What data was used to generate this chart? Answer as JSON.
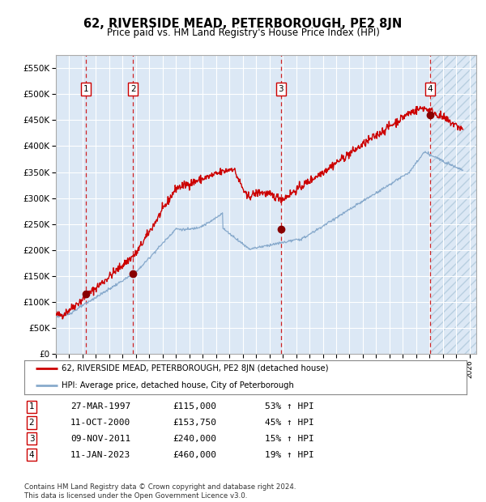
{
  "title": "62, RIVERSIDE MEAD, PETERBOROUGH, PE2 8JN",
  "subtitle": "Price paid vs. HM Land Registry's House Price Index (HPI)",
  "ylim": [
    0,
    575000
  ],
  "yticks": [
    0,
    50000,
    100000,
    150000,
    200000,
    250000,
    300000,
    350000,
    400000,
    450000,
    500000,
    550000
  ],
  "ytick_labels": [
    "£0",
    "£50K",
    "£100K",
    "£150K",
    "£200K",
    "£250K",
    "£300K",
    "£350K",
    "£400K",
    "£450K",
    "£500K",
    "£550K"
  ],
  "bg_color": "#dce8f5",
  "hatch_color": "#b8cfe0",
  "red_line_color": "#cc0000",
  "blue_line_color": "#88aacc",
  "marker_color": "#880000",
  "vline_color": "#cc0000",
  "grid_color": "#ffffff",
  "purchases": [
    {
      "num": 1,
      "date_x": 1997.23,
      "price": 115000,
      "label": "27-MAR-1997",
      "price_label": "£115,000",
      "pct": "53%"
    },
    {
      "num": 2,
      "date_x": 2000.78,
      "price": 153750,
      "label": "11-OCT-2000",
      "price_label": "£153,750",
      "pct": "45%"
    },
    {
      "num": 3,
      "date_x": 2011.86,
      "price": 240000,
      "label": "09-NOV-2011",
      "price_label": "£240,000",
      "pct": "15%"
    },
    {
      "num": 4,
      "date_x": 2023.04,
      "price": 460000,
      "label": "11-JAN-2023",
      "price_label": "£460,000",
      "pct": "19%"
    }
  ],
  "legend_line1": "62, RIVERSIDE MEAD, PETERBOROUGH, PE2 8JN (detached house)",
  "legend_line2": "HPI: Average price, detached house, City of Peterborough",
  "footer": "Contains HM Land Registry data © Crown copyright and database right 2024.\nThis data is licensed under the Open Government Licence v3.0.",
  "xmin": 1995.0,
  "xmax": 2026.5
}
